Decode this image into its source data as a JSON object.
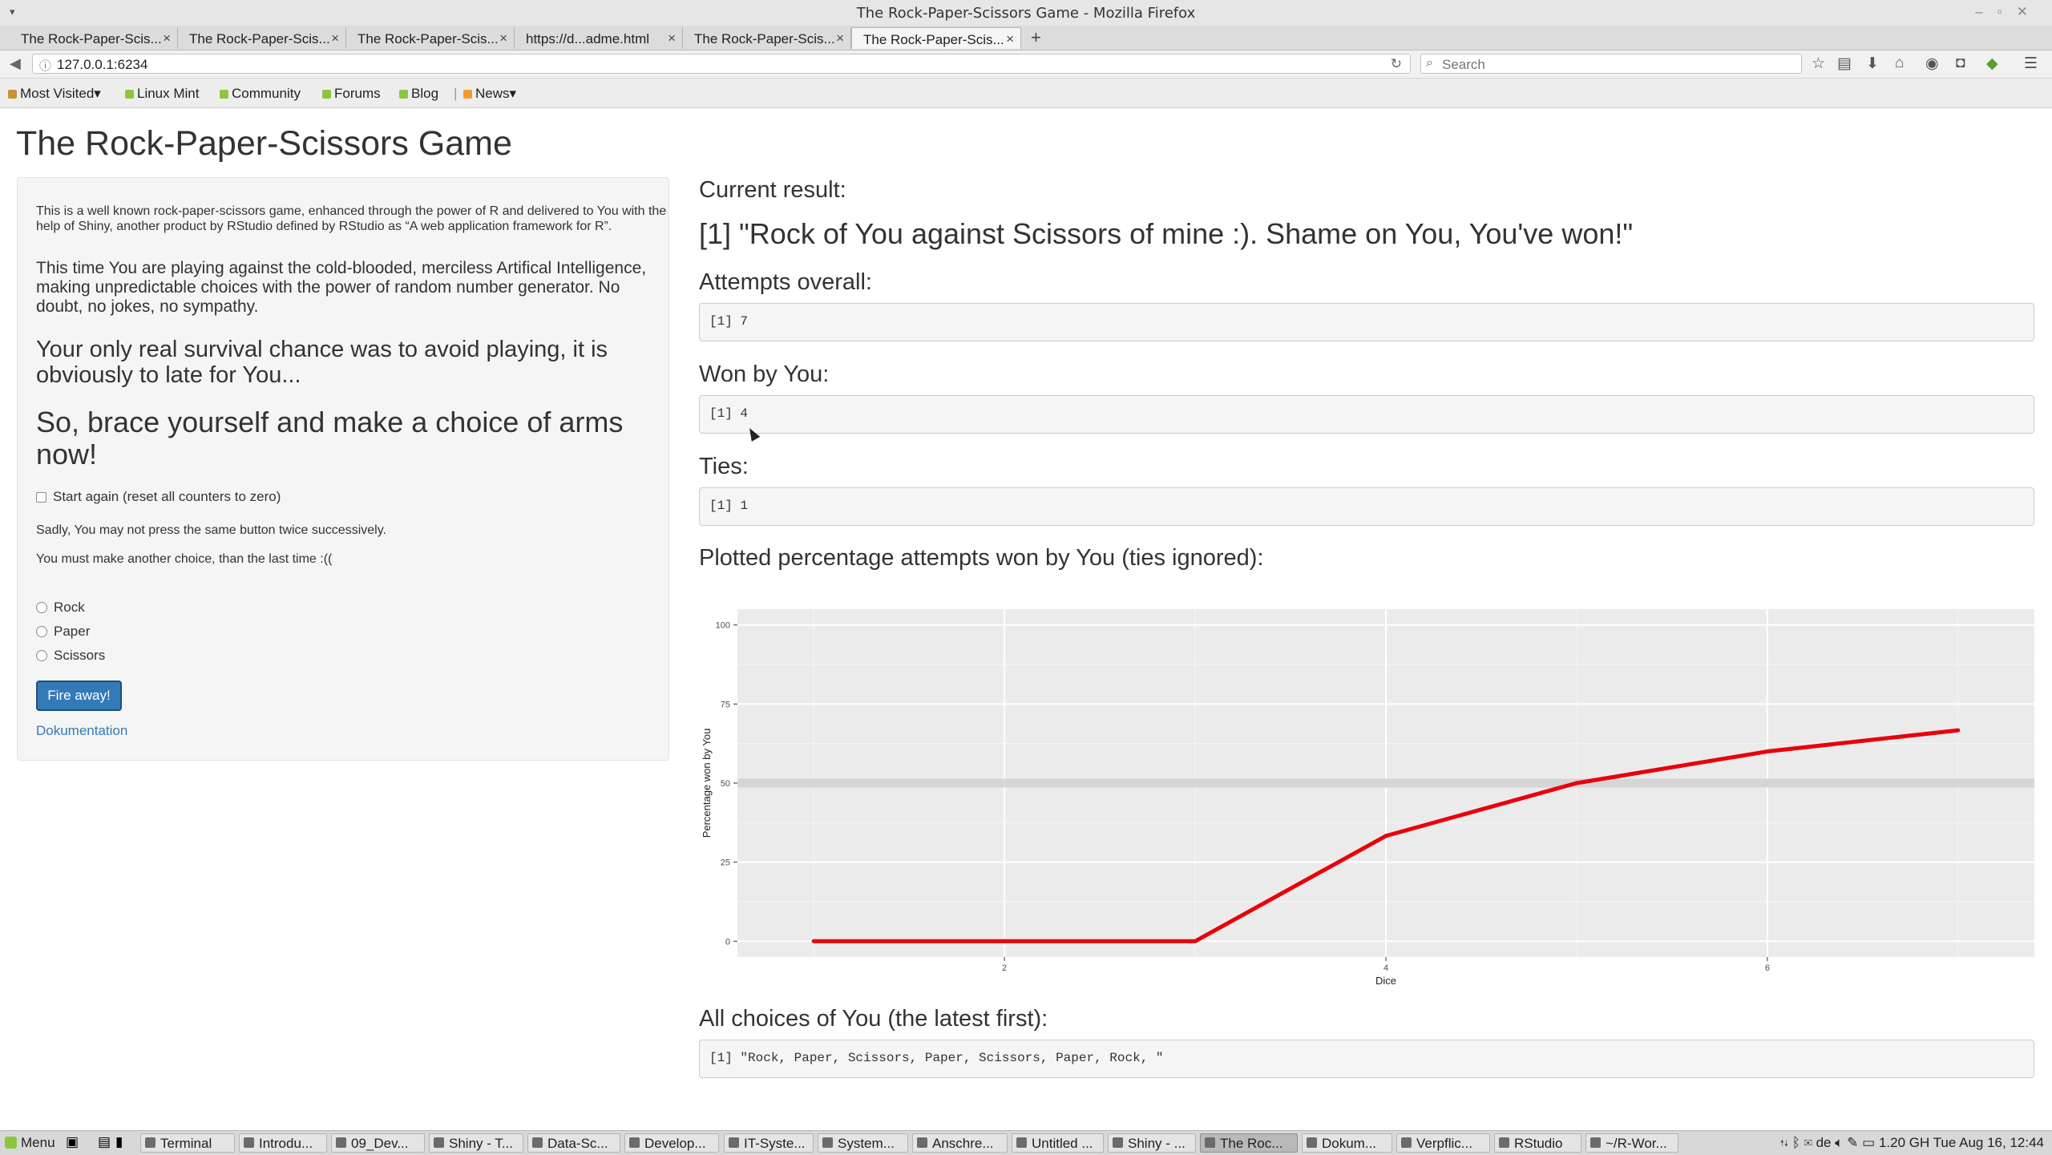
{
  "window": {
    "title": "The Rock-Paper-Scissors Game - Mozilla Firefox"
  },
  "tabs": [
    {
      "label": "The Rock-Paper-Scis..."
    },
    {
      "label": "The Rock-Paper-Scis..."
    },
    {
      "label": "The Rock-Paper-Scis..."
    },
    {
      "label": "https://d...adme.html"
    },
    {
      "label": "The Rock-Paper-Scis..."
    },
    {
      "label": "The Rock-Paper-Scis..."
    }
  ],
  "navbar": {
    "url": "127.0.0.1:6234",
    "search_placeholder": "Search"
  },
  "bookmarks": [
    {
      "label": "Most Visited▾"
    },
    {
      "label": "Linux Mint"
    },
    {
      "label": "Community"
    },
    {
      "label": "Forums"
    },
    {
      "label": "Blog"
    },
    {
      "label": "News▾"
    }
  ],
  "page": {
    "title": "The Rock-Paper-Scissors Game",
    "sidebar": {
      "intro": "This is a well known rock-paper-scissors game, enhanced through the power of R and delivered to You with the help of Shiny, another product by RStudio defined by RStudio as “A web application framework for R”.",
      "ai_text": "This time You are playing against the cold-blooded, merciless Artifical Intelligence, making unpredictable choices with the power of random number generator. No doubt, no jokes, no sympathy.",
      "survival_text": "Your only real survival chance was to avoid playing, it is obviously to late for You...",
      "brace_text": "So, brace yourself and make a choice of arms now!",
      "reset_label": "Start again (reset all counters to zero)",
      "warning1": "Sadly, You may not press the same button twice successively.",
      "warning2": "You must make another choice, than the last time :((",
      "choices": [
        "Rock",
        "Paper",
        "Scissors"
      ],
      "fire_label": "Fire away!",
      "doc_link": "Dokumentation"
    },
    "main": {
      "current_label": "Current result:",
      "current_value": "[1] \"Rock of You against Scissors of mine :). Shame on You, You've won!\"",
      "attempts_label": "Attempts overall:",
      "attempts_value": "[1] 7",
      "won_label": "Won by You:",
      "won_value": "[1] 4",
      "ties_label": "Ties:",
      "ties_value": "[1] 1",
      "plot_label": "Plotted percentage attempts won by You (ties ignored):",
      "choices_label": "All choices of You (the latest first):",
      "choices_value": "[1] \"Rock, Paper, Scissors, Paper, Scissors, Paper, Rock, \""
    }
  },
  "chart_data": {
    "type": "line",
    "x": [
      1,
      2,
      3,
      4,
      5,
      6,
      7
    ],
    "series": [
      {
        "name": "Percentage won by You",
        "values": [
          0,
          0,
          0,
          33.3,
          50,
          60,
          66.7
        ],
        "color": "#e8000b"
      }
    ],
    "reference_line": {
      "y": 50,
      "color": "#d6d6d6"
    },
    "xlabel": "Dice",
    "ylabel": "Percentage won by You",
    "xticks": [
      2,
      4,
      6
    ],
    "yticks": [
      0,
      25,
      50,
      75,
      100
    ],
    "xlim": [
      0.6,
      7.4
    ],
    "ylim": [
      -5,
      105
    ],
    "grid": true,
    "background": "#ebebeb"
  },
  "taskbar": {
    "menu_label": "Menu",
    "items": [
      {
        "label": "Terminal"
      },
      {
        "label": "Introdu..."
      },
      {
        "label": "09_Dev..."
      },
      {
        "label": "Shiny - T..."
      },
      {
        "label": "Data-Sc..."
      },
      {
        "label": "Develop..."
      },
      {
        "label": "IT-Syste..."
      },
      {
        "label": "System..."
      },
      {
        "label": "Anschre..."
      },
      {
        "label": "Untitled ..."
      },
      {
        "label": "Shiny - ..."
      },
      {
        "label": "The Roc..."
      },
      {
        "label": "Dokum..."
      },
      {
        "label": "Verpflic..."
      },
      {
        "label": "RStudio"
      },
      {
        "label": "~/R-Wor..."
      }
    ],
    "tray": {
      "lang": "de",
      "cpu": "1.20 GH",
      "clock": "Tue Aug 16, 12:44"
    }
  }
}
